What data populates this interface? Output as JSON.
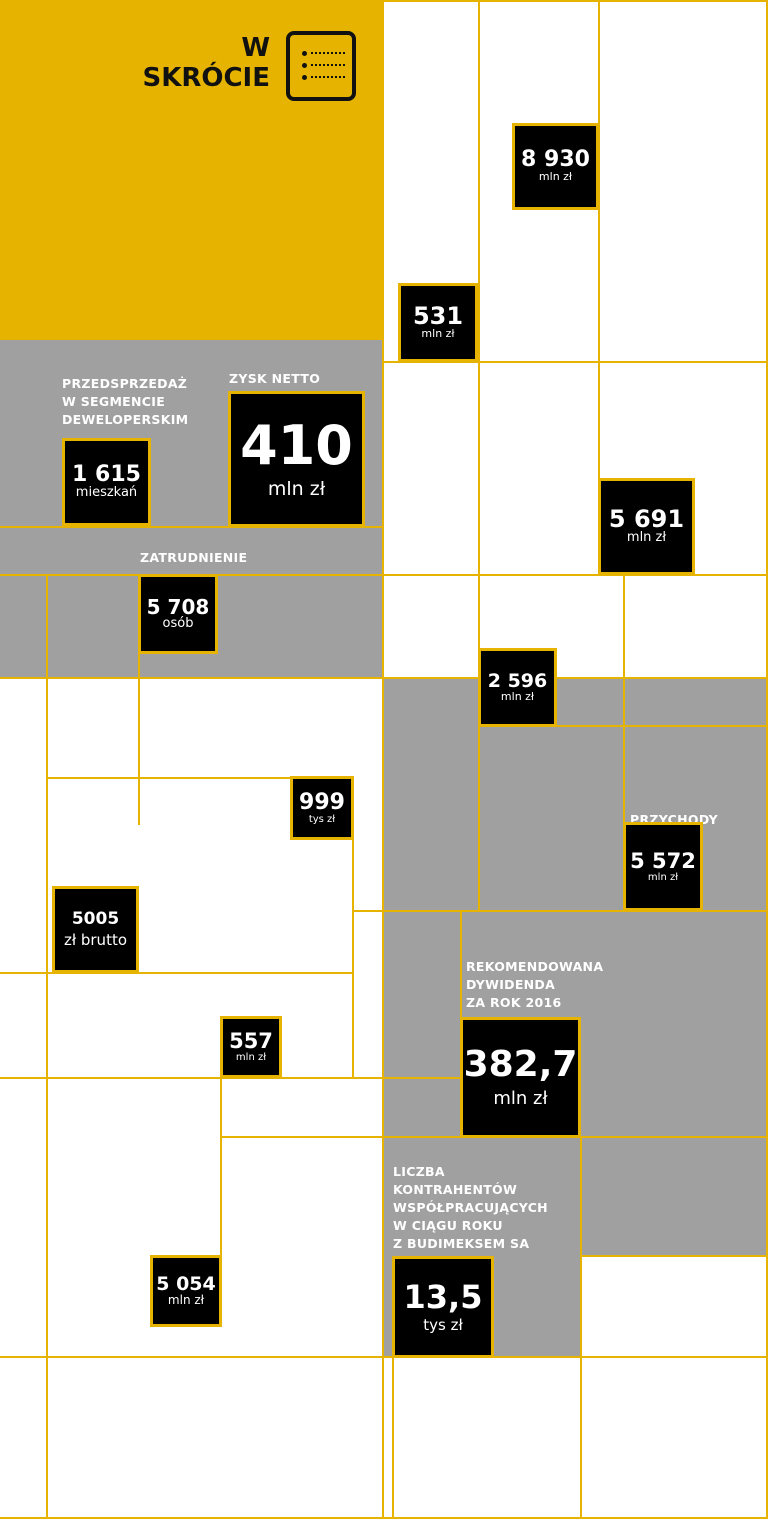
{
  "header": {
    "title": "W\nSKRÓCIE",
    "icon": "list-card-icon"
  },
  "colors": {
    "accent": "#e6b400",
    "panel_gray": "#a0a0a0",
    "tile": "#000000",
    "text_on_tile": "#ffffff"
  },
  "labels": {
    "presale": "PRZEDSPRZEDAŻ\nW SEGMENCIE\nDEWELOPERSKIM",
    "net_profit": "ZYSK NETTO",
    "employment": "ZATRUDNIENIE",
    "revenue": "PRZYCHODY",
    "dividend": "REKOMENDOWANA\nDYWIDENDA\nZA ROK 2016",
    "contractors": "LICZBA\nKONTRAHENTÓW\nWSPÓŁPRACUJĄCYCH\nW CIĄGU ROKU\nZ BUDIMEKSEM SA"
  },
  "tiles": {
    "t8930": {
      "value": "8 930",
      "unit": "mln zł"
    },
    "t531": {
      "value": "531",
      "unit": "mln zł"
    },
    "t1615": {
      "value": "1 615",
      "unit": "mieszkań"
    },
    "t410": {
      "value": "410",
      "unit": "mln zł"
    },
    "t5691": {
      "value": "5 691",
      "unit": "mln zł"
    },
    "t5708": {
      "value": "5 708",
      "unit": "osób"
    },
    "t2596": {
      "value": "2 596",
      "unit": "mln zł"
    },
    "t999": {
      "value": "999",
      "unit": "tys zł"
    },
    "t5572": {
      "value": "5 572",
      "unit": "mln zł"
    },
    "t5005": {
      "value": "5005",
      "unit": "zł brutto"
    },
    "t557": {
      "value": "557",
      "unit": "mln zł"
    },
    "t3827": {
      "value": "382,7",
      "unit": "mln zł"
    },
    "t5054": {
      "value": "5 054",
      "unit": "mln zł"
    },
    "t135": {
      "value": "13,5",
      "unit": "tys zł"
    }
  }
}
